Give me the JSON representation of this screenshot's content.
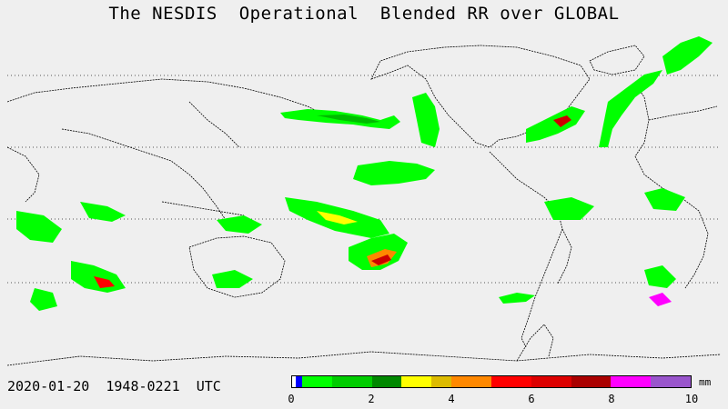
{
  "title": "The NESDIS  Operational  Blended RR over GLOBAL",
  "timestamp": "2020-01-20  1948-0221  UTC",
  "colorbar": {
    "unit": "mm",
    "min": 0,
    "max": 10,
    "tick_labels": [
      "0",
      "2",
      "4",
      "6",
      "8",
      "10"
    ],
    "segments": [
      {
        "from": 0.0,
        "to": 0.1,
        "color": "#ffffff"
      },
      {
        "from": 0.1,
        "to": 0.25,
        "color": "#0000ff"
      },
      {
        "from": 0.25,
        "to": 1.0,
        "color": "#00ff00"
      },
      {
        "from": 1.0,
        "to": 2.0,
        "color": "#00cc00"
      },
      {
        "from": 2.0,
        "to": 2.75,
        "color": "#008800"
      },
      {
        "from": 2.75,
        "to": 3.5,
        "color": "#ffff00"
      },
      {
        "from": 3.5,
        "to": 4.0,
        "color": "#ddbb00"
      },
      {
        "from": 4.0,
        "to": 5.0,
        "color": "#ff8800"
      },
      {
        "from": 5.0,
        "to": 6.0,
        "color": "#ff0000"
      },
      {
        "from": 6.0,
        "to": 7.0,
        "color": "#dd0000"
      },
      {
        "from": 7.0,
        "to": 8.0,
        "color": "#aa0000"
      },
      {
        "from": 8.0,
        "to": 9.0,
        "color": "#ff00ff"
      },
      {
        "from": 9.0,
        "to": 10.0,
        "color": "#9955cc"
      }
    ]
  },
  "colors": {
    "background": "#efefef",
    "coastline": "#000000",
    "graticule": "#555555"
  }
}
